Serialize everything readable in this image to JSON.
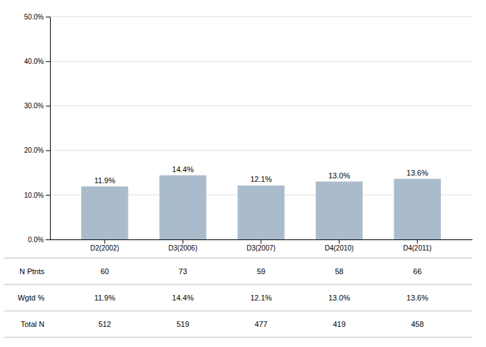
{
  "chart_data": {
    "type": "bar",
    "categories": [
      "D2(2002)",
      "D3(2006)",
      "D3(2007)",
      "D4(2010)",
      "D4(2011)"
    ],
    "values": [
      11.9,
      14.4,
      12.1,
      13.0,
      13.6
    ],
    "value_labels": [
      "11.9%",
      "14.4%",
      "12.1%",
      "13.0%",
      "13.6%"
    ],
    "data_labels": true,
    "color": "#aabccc",
    "ylim": [
      0,
      50
    ],
    "yticks": [
      {
        "value": 0,
        "label": "0.0%"
      },
      {
        "value": 10,
        "label": "10.0%"
      },
      {
        "value": 20,
        "label": "20.0%"
      },
      {
        "value": 30,
        "label": "30.0%"
      },
      {
        "value": 40,
        "label": "40.0%"
      },
      {
        "value": 50,
        "label": "50.0%"
      }
    ],
    "grid": true,
    "table": [
      {
        "name": "N Ptnts",
        "values": [
          60,
          73,
          59,
          58,
          66
        ]
      },
      {
        "name": "Wgtd %",
        "values": [
          11.9,
          14.4,
          12.1,
          13.0,
          13.6
        ],
        "value_labels": [
          "11.9%",
          "14.4%",
          "12.1%",
          "13.0%",
          "13.6%"
        ]
      },
      {
        "name": "Total N",
        "values": [
          512,
          519,
          477,
          419,
          458
        ]
      }
    ]
  }
}
